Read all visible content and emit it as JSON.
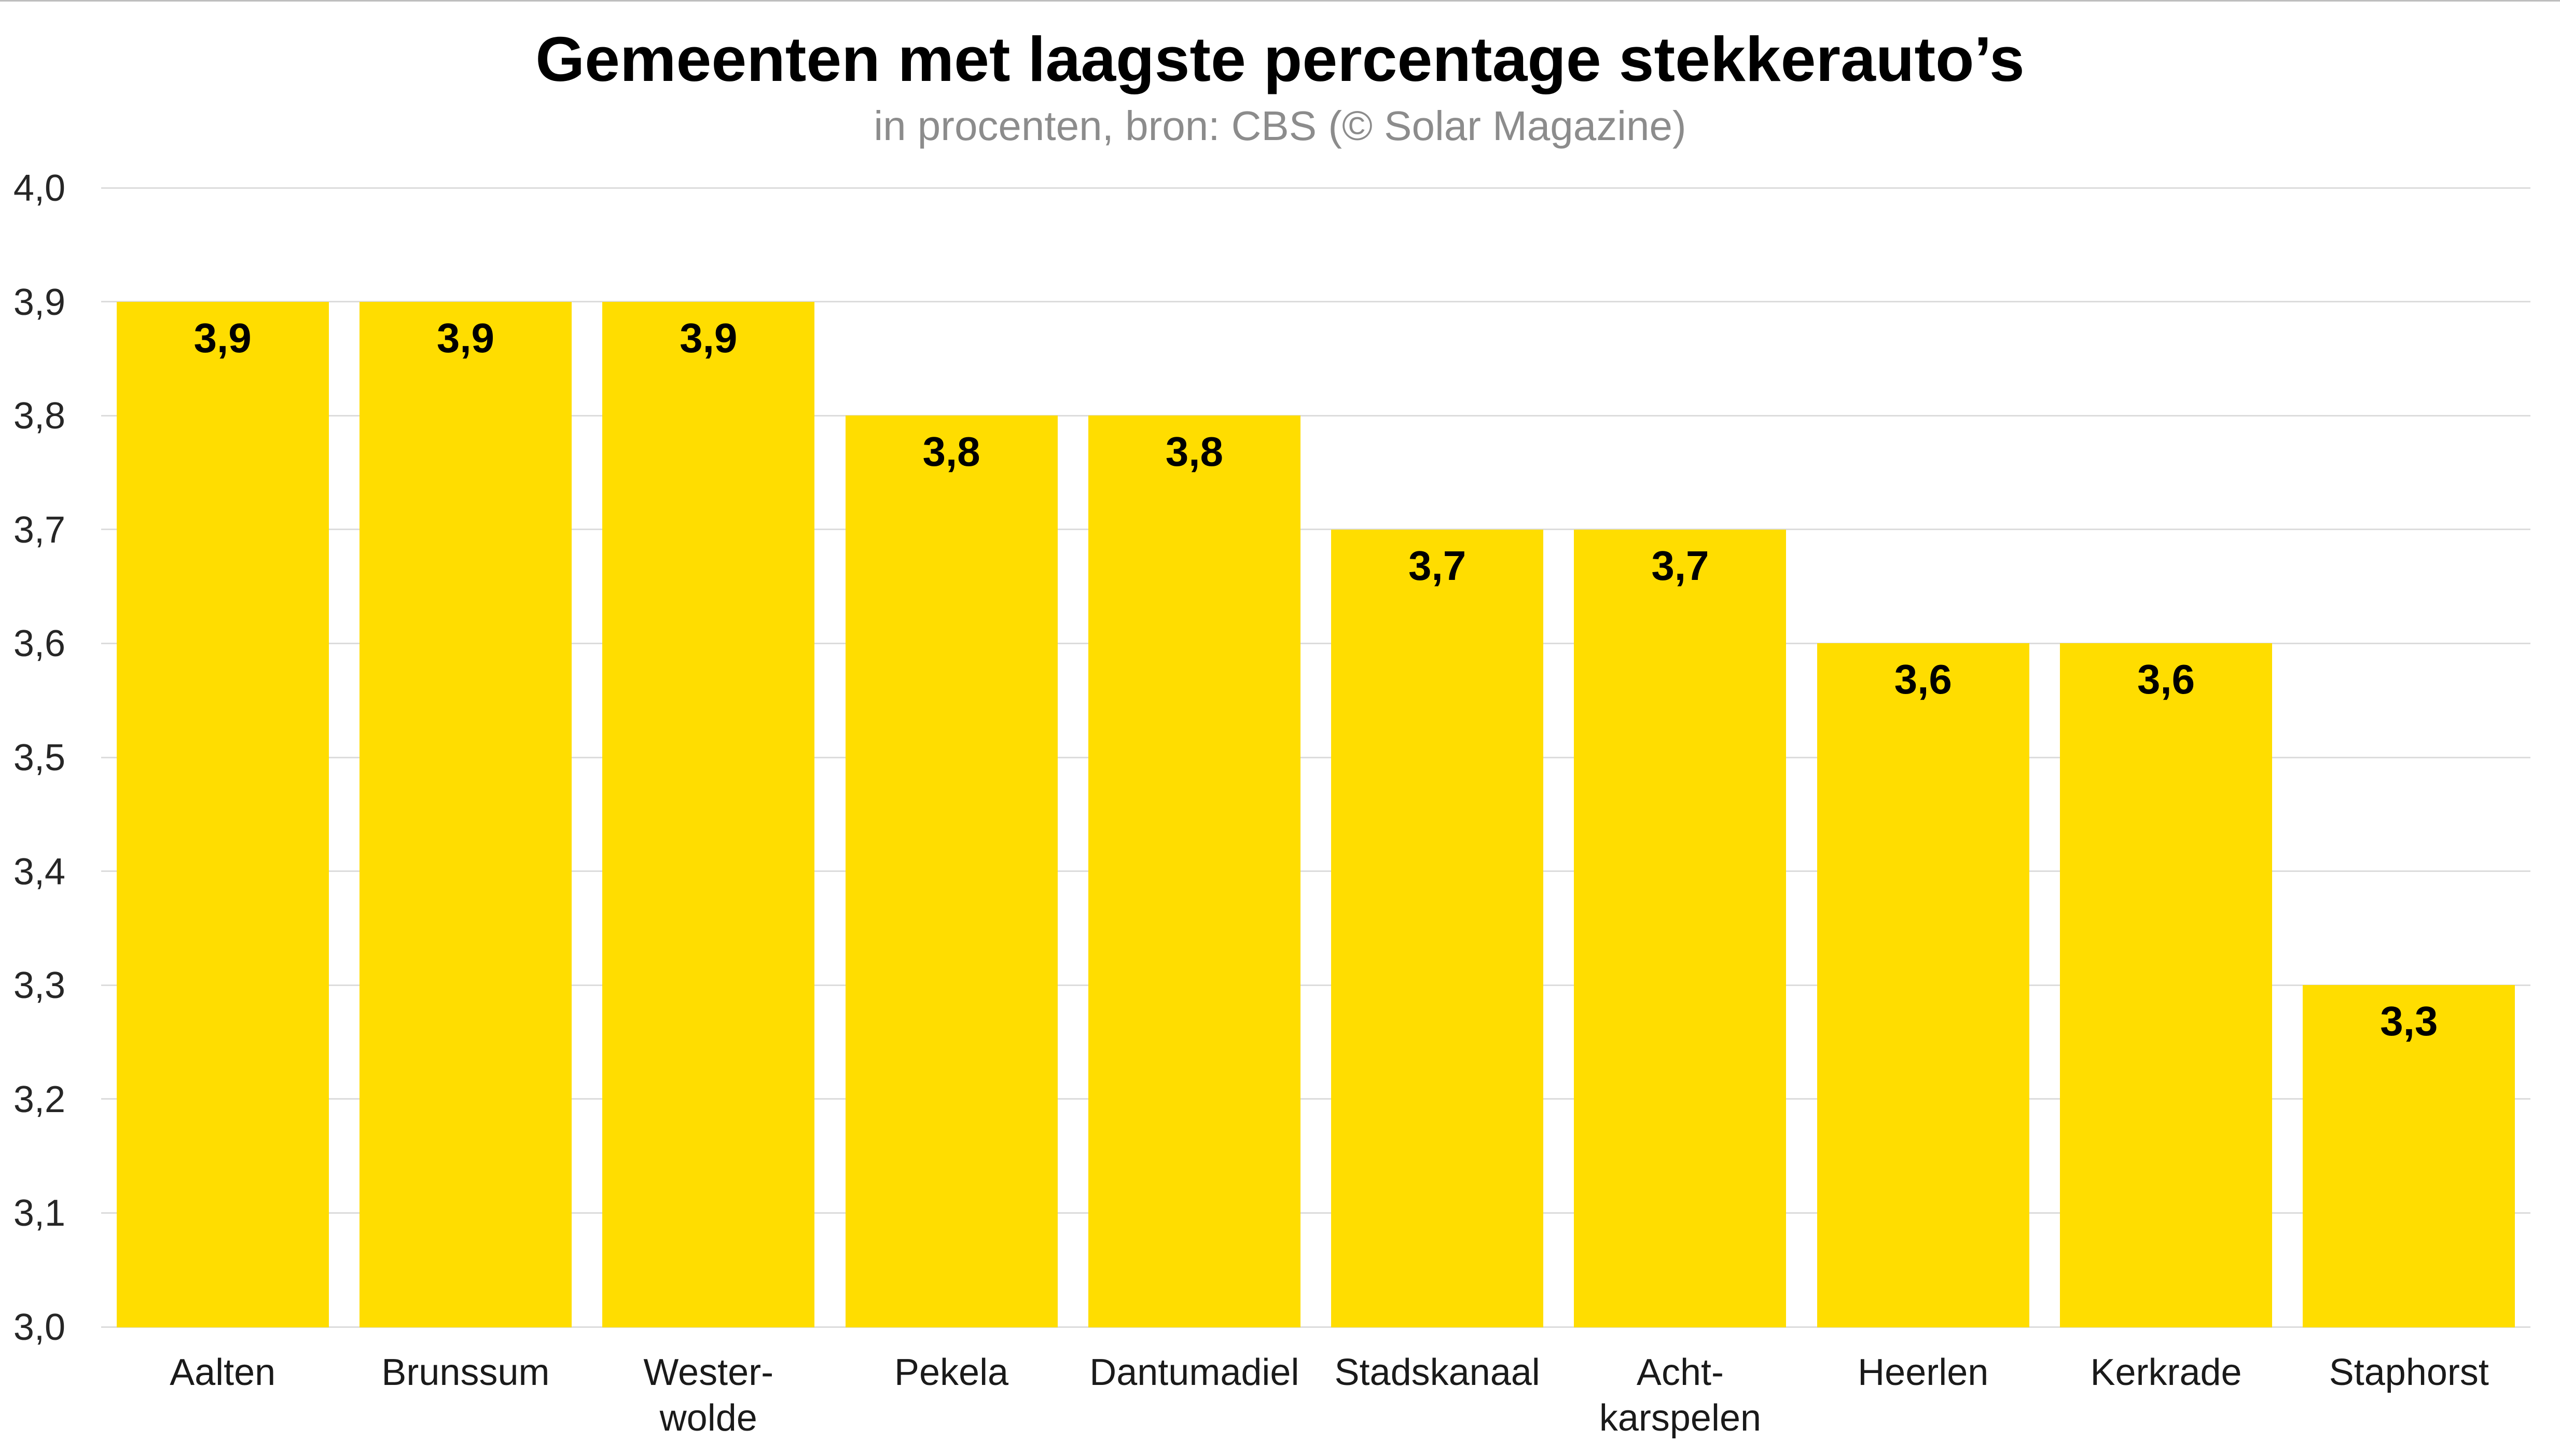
{
  "chart_data": {
    "type": "bar",
    "title": "Gemeenten met laagste percentage stekkerauto’s",
    "subtitle": "in procenten, bron: CBS (© Solar Magazine)",
    "categories": [
      "Aalten",
      "Brunssum",
      "Wester-\nwolde",
      "Pekela",
      "Dantumadiel",
      "Stadskanaal",
      "Acht-\nkarspelen",
      "Heerlen",
      "Kerkrade",
      "Staphorst"
    ],
    "values": [
      3.9,
      3.9,
      3.9,
      3.8,
      3.8,
      3.7,
      3.7,
      3.6,
      3.6,
      3.3
    ],
    "data_labels": [
      "3,9",
      "3,9",
      "3,9",
      "3,8",
      "3,8",
      "3,7",
      "3,7",
      "3,6",
      "3,6",
      "3,3"
    ],
    "ylim": [
      3.0,
      4.0
    ],
    "yticks": [
      3.0,
      3.1,
      3.2,
      3.3,
      3.4,
      3.5,
      3.6,
      3.7,
      3.8,
      3.9,
      4.0
    ],
    "ytick_labels": [
      "3,0",
      "3,1",
      "3,2",
      "3,3",
      "3,4",
      "3,5",
      "3,6",
      "3,7",
      "3,8",
      "3,9",
      "4,0"
    ],
    "grid": true
  },
  "colors": {
    "bar": "#FFDD00",
    "grid": "#DCDCDC"
  }
}
